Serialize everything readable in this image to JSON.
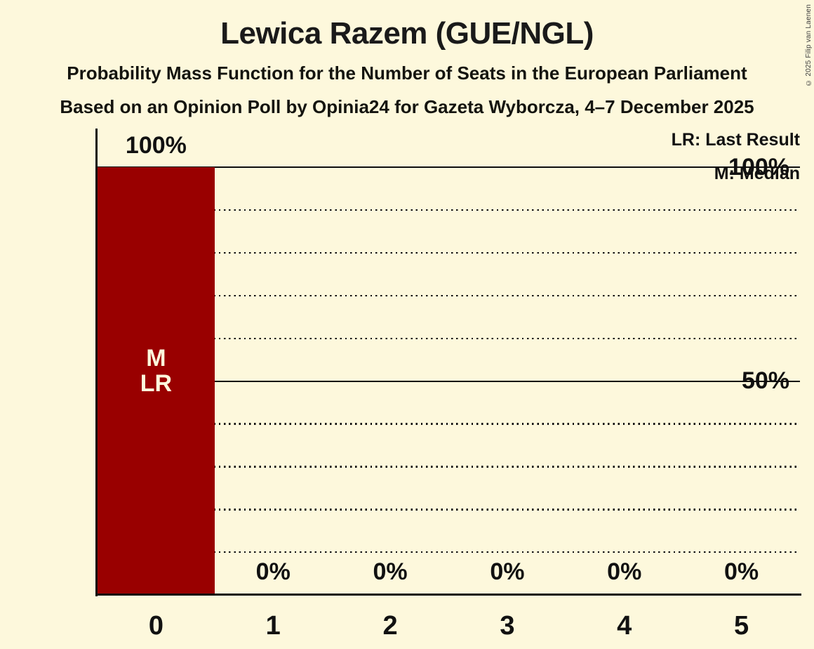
{
  "title": "Lewica Razem (GUE/NGL)",
  "subtitle1": "Probability Mass Function for the Number of Seats in the European Parliament",
  "subtitle2": "Based on an Opinion Poll by Opinia24 for Gazeta Wyborcza, 4–7 December 2025",
  "copyright": "© 2025 Filip van Laenen",
  "legend": {
    "lr": "LR: Last Result",
    "m": "M: Median"
  },
  "colors": {
    "background": "#FDF8DC",
    "bar": "#990000",
    "text": "#111111",
    "line": "#0E0E0E",
    "bar_label": "#FDF8DC"
  },
  "chart_data": {
    "type": "bar",
    "title": "Lewica Razem (GUE/NGL)",
    "categories": [
      "0",
      "1",
      "2",
      "3",
      "4",
      "5"
    ],
    "values": [
      100,
      0,
      0,
      0,
      0,
      0
    ],
    "value_labels": [
      "100%",
      "0%",
      "0%",
      "0%",
      "0%",
      "0%"
    ],
    "ytick_labels": [
      "100%",
      "50%"
    ],
    "ylim": [
      0,
      100
    ],
    "grid": "horizontal dotted every 10%, solid at 50% and 100%",
    "legend_position": "top-right",
    "median_seats": 0,
    "last_result_seats": 0,
    "bar_annotations": {
      "category": "0",
      "labels": [
        "M",
        "LR"
      ]
    }
  }
}
